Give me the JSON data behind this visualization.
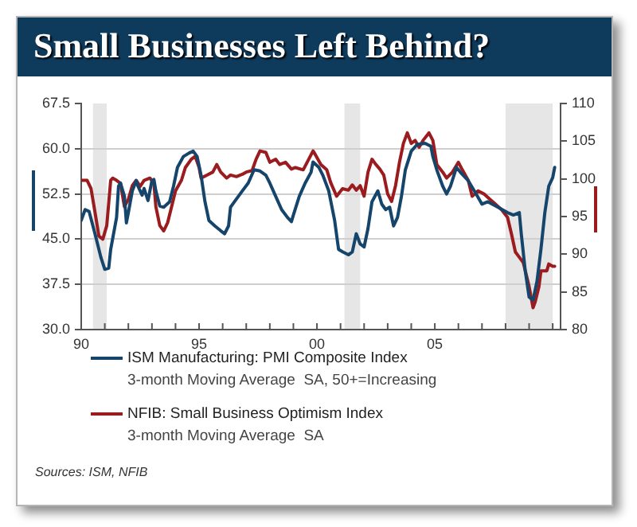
{
  "chart_data": {
    "type": "line",
    "title": "Small Businesses Left Behind?",
    "series": [
      {
        "name": "ISM Manufacturing: PMI Composite Index\n3-month Moving Average  SA, 50+=Increasing",
        "color": "#16456b",
        "x": [
          "1990-01",
          "1990-03",
          "1990-05",
          "1990-08",
          "1990-11",
          "1991-01",
          "1991-03",
          "1991-04",
          "1991-07",
          "1991-08",
          "1991-09",
          "1991-11",
          "1991-12",
          "1992-01",
          "1992-03",
          "1992-05",
          "1992-06",
          "1992-08",
          "1992-09",
          "1992-11",
          "1993-01",
          "1993-02",
          "1993-03",
          "1993-05",
          "1993-07",
          "1993-10",
          "1993-12",
          "1994-02",
          "1994-05",
          "1994-08",
          "1994-10",
          "1994-12",
          "1995-02",
          "1995-04",
          "1995-06",
          "1995-09",
          "1995-12",
          "1996-02",
          "1996-04",
          "1996-05",
          "1996-07",
          "1996-09",
          "1996-11",
          "1997-02",
          "1997-05",
          "1997-08",
          "1997-11",
          "1998-01",
          "1998-04",
          "1998-07",
          "1998-10",
          "1998-12",
          "1999-01",
          "1999-04",
          "1999-07",
          "1999-10",
          "1999-11",
          "2000-02",
          "2000-04",
          "2000-07",
          "2000-10",
          "2000-12",
          "2001-02",
          "2001-05",
          "2001-07",
          "2001-09",
          "2001-11",
          "2002-01",
          "2002-03",
          "2002-05",
          "2002-08",
          "2002-10",
          "2002-12",
          "2003-02",
          "2003-04",
          "2003-06",
          "2003-08",
          "2003-10",
          "2004-01",
          "2004-04",
          "2004-08",
          "2004-11",
          "2004-12",
          "2005-02",
          "2005-05",
          "2005-07",
          "2005-09",
          "2005-12",
          "2006-02",
          "2006-06",
          "2006-10",
          "2007-01",
          "2007-04",
          "2007-08",
          "2008-02",
          "2008-05",
          "2008-08",
          "2008-09",
          "2008-11",
          "2009-01",
          "2009-03",
          "2009-05",
          "2009-07",
          "2009-09",
          "2009-11",
          "2010-01",
          "2010-02"
        ],
        "values": [
          48.1,
          49.9,
          49.6,
          45.9,
          42.0,
          40.0,
          40.2,
          43.3,
          48.6,
          53.8,
          54.3,
          52.1,
          47.7,
          49.4,
          53.0,
          54.7,
          53.7,
          52.3,
          53.4,
          51.4,
          54.7,
          54.9,
          53.0,
          50.5,
          50.3,
          51.2,
          53.8,
          56.9,
          58.7,
          59.3,
          59.6,
          58.7,
          55.6,
          51.2,
          48.1,
          47.2,
          46.4,
          45.9,
          47.2,
          50.3,
          51.2,
          52.1,
          53.0,
          54.3,
          56.5,
          56.3,
          55.6,
          54.3,
          52.1,
          49.9,
          48.6,
          47.9,
          49.0,
          52.1,
          54.3,
          56.1,
          57.8,
          56.9,
          55.6,
          53.0,
          48.1,
          43.3,
          42.9,
          42.4,
          42.9,
          45.9,
          44.2,
          43.7,
          46.8,
          51.2,
          53.0,
          50.8,
          49.9,
          50.3,
          47.2,
          48.6,
          52.1,
          56.5,
          59.6,
          60.7,
          60.9,
          60.4,
          58.7,
          56.5,
          53.8,
          52.5,
          53.8,
          56.9,
          56.1,
          54.7,
          52.5,
          50.8,
          51.2,
          50.5,
          49.4,
          49.0,
          49.4,
          45.9,
          39.8,
          35.4,
          34.9,
          38.0,
          43.3,
          49.4,
          53.8,
          55.2,
          56.9
        ]
      },
      {
        "name": "NFIB: Small Business Optimism Index\n3-month Moving Average  SA",
        "color": "#9a1c1f",
        "axis": "y2",
        "x": [
          "1990-01",
          "1990-04",
          "1990-06",
          "1990-08",
          "1990-10",
          "1990-12",
          "1991-02",
          "1991-04",
          "1991-05",
          "1991-07",
          "1991-09",
          "1991-11",
          "1992-01",
          "1992-03",
          "1992-05",
          "1992-07",
          "1992-09",
          "1992-12",
          "1993-02",
          "1993-03",
          "1993-05",
          "1993-07",
          "1993-09",
          "1993-11",
          "1994-01",
          "1994-04",
          "1994-06",
          "1994-09",
          "1994-11",
          "1995-01",
          "1995-02",
          "1995-05",
          "1995-08",
          "1995-10",
          "1995-12",
          "1996-03",
          "1996-05",
          "1996-08",
          "1996-11",
          "1997-01",
          "1997-04",
          "1997-06",
          "1997-08",
          "1997-11",
          "1998-01",
          "1998-04",
          "1998-06",
          "1998-09",
          "1998-12",
          "1999-02",
          "1999-06",
          "1999-08",
          "1999-11",
          "1999-12",
          "2000-03",
          "2000-06",
          "2000-08",
          "2000-11",
          "2001-02",
          "2001-05",
          "2001-07",
          "2001-09",
          "2001-11",
          "2002-01",
          "2002-03",
          "2002-05",
          "2002-07",
          "2002-09",
          "2002-11",
          "2003-01",
          "2003-03",
          "2003-05",
          "2003-07",
          "2003-09",
          "2003-11",
          "2004-01",
          "2004-03",
          "2004-05",
          "2004-07",
          "2004-10",
          "2004-12",
          "2005-02",
          "2005-05",
          "2005-07",
          "2005-10",
          "2006-01",
          "2006-03",
          "2006-06",
          "2006-08",
          "2006-11",
          "2007-02",
          "2007-05",
          "2007-08",
          "2007-11",
          "2008-02",
          "2008-04",
          "2008-06",
          "2008-08",
          "2008-10",
          "2008-12",
          "2009-01",
          "2009-03",
          "2009-04",
          "2009-06",
          "2009-07",
          "2009-10",
          "2009-11",
          "2010-01",
          "2010-02"
        ],
        "values": [
          99.8,
          99.8,
          98.7,
          95.6,
          92.4,
          92.0,
          93.8,
          99.8,
          100.1,
          99.8,
          99.4,
          96.3,
          97.3,
          99.1,
          99.8,
          99.0,
          99.8,
          100.1,
          99.4,
          96.3,
          93.8,
          93.1,
          94.2,
          96.3,
          98.4,
          99.8,
          101.5,
          102.6,
          103.0,
          101.5,
          100.1,
          100.5,
          100.9,
          101.9,
          100.9,
          100.1,
          100.5,
          100.3,
          100.6,
          100.9,
          101.1,
          102.6,
          103.7,
          103.5,
          102.2,
          102.6,
          101.9,
          102.2,
          101.3,
          101.5,
          101.2,
          102.2,
          103.7,
          103.3,
          101.9,
          101.2,
          99.5,
          97.7,
          98.7,
          98.5,
          99.2,
          98.5,
          99.1,
          97.7,
          100.9,
          102.6,
          101.9,
          101.3,
          100.5,
          98.0,
          97.0,
          99.1,
          102.2,
          104.7,
          106.1,
          104.7,
          105.1,
          104.2,
          105.1,
          106.1,
          105.1,
          101.9,
          100.9,
          100.1,
          100.9,
          102.2,
          101.2,
          99.8,
          97.7,
          98.4,
          98.0,
          97.3,
          96.6,
          95.9,
          94.9,
          92.7,
          90.3,
          89.6,
          88.9,
          86.8,
          85.7,
          82.9,
          83.6,
          85.7,
          87.8,
          87.8,
          88.7,
          88.4,
          88.4
        ]
      }
    ],
    "xlim": [
      "1990-01",
      "2010-05"
    ],
    "xticks": [
      {
        "value": "1990",
        "label": "90"
      },
      {
        "value": "1991",
        "label": null
      },
      {
        "value": "1992",
        "label": null
      },
      {
        "value": "1993",
        "label": null
      },
      {
        "value": "1994",
        "label": null
      },
      {
        "value": "1995",
        "label": "95"
      },
      {
        "value": "1996",
        "label": null
      },
      {
        "value": "1997",
        "label": null
      },
      {
        "value": "1998",
        "label": null
      },
      {
        "value": "1999",
        "label": null
      },
      {
        "value": "2000",
        "label": "00"
      },
      {
        "value": "2001",
        "label": null
      },
      {
        "value": "2002",
        "label": null
      },
      {
        "value": "2003",
        "label": null
      },
      {
        "value": "2004",
        "label": null
      },
      {
        "value": "2005",
        "label": "05"
      },
      {
        "value": "2006",
        "label": null
      },
      {
        "value": "2007",
        "label": null
      },
      {
        "value": "2008",
        "label": null
      },
      {
        "value": "2009",
        "label": null
      },
      {
        "value": "2010",
        "label": null
      }
    ],
    "ylim": [
      30,
      67.5
    ],
    "yticks": [
      {
        "value": 30,
        "label": "30.0"
      },
      37.5,
      {
        "value": 45,
        "label": "45.0"
      },
      52.5,
      {
        "value": 60,
        "label": "60.0"
      },
      67.5
    ],
    "y2lim": [
      80,
      110
    ],
    "y2ticks": [
      80,
      85,
      90,
      95,
      100,
      105,
      110
    ],
    "bands": [
      {
        "axis": "x",
        "from": "1990-07",
        "to": "1991-02",
        "color": "#e6e6e6"
      },
      {
        "axis": "x",
        "from": "2001-03",
        "to": "2001-11",
        "color": "#e6e6e6"
      },
      {
        "axis": "x",
        "from": "2008-01",
        "to": "2010-01",
        "color": "#e6e6e6"
      }
    ],
    "grid": "y",
    "legend": "bottom",
    "marker": "none",
    "line_style": "solid",
    "annotations": [
      "Sources: ISM, NFIB"
    ]
  }
}
